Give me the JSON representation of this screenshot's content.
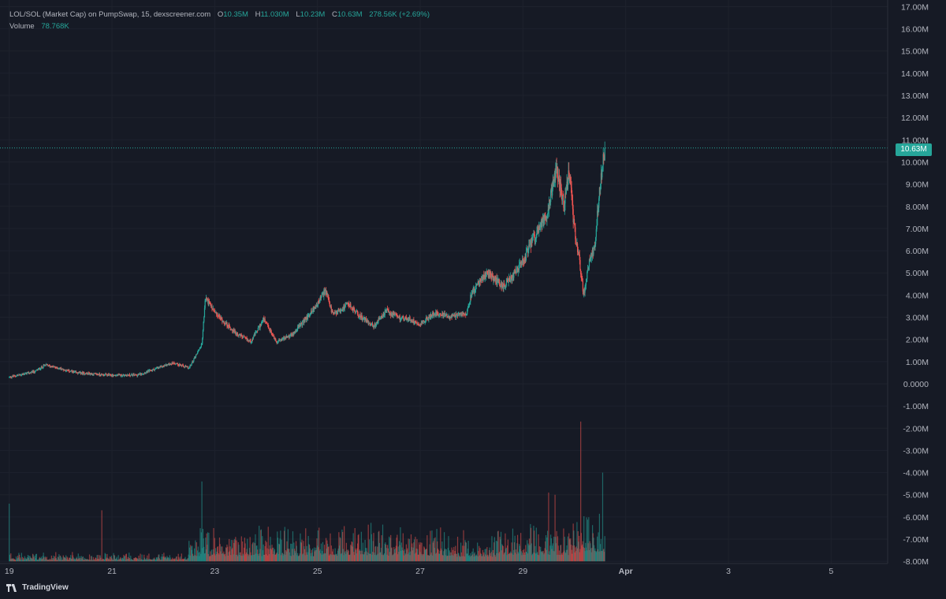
{
  "legend": {
    "title": "LOL/SOL (Market Cap) on PumpSwap, 15, dexscreener.com",
    "o_label": "O",
    "o_value": "10.35M",
    "h_label": "H",
    "h_value": "11.030M",
    "l_label": "L",
    "l_value": "10.23M",
    "c_label": "C",
    "c_value": "10.63M",
    "change": "278.56K (+2.69%)",
    "volume_label": "Volume",
    "volume_value": "78.768K"
  },
  "last_price_tag": "10.63M",
  "brand": "TradingView",
  "colors": {
    "up": "#26a69a",
    "down": "#ef5350",
    "background": "#161a25",
    "grid": "#1f2430",
    "text": "#d1d4dc"
  },
  "chart_data": {
    "type": "candlestick",
    "title": "LOL/SOL (Market Cap) on PumpSwap, 15, dexscreener.com",
    "x_axis": {
      "ticks": [
        "19",
        "21",
        "23",
        "25",
        "27",
        "29",
        "Apr",
        "3",
        "5"
      ],
      "range": [
        18.82,
        36.1
      ],
      "unit": "day"
    },
    "y_axis": {
      "ticks": [
        "17.00M",
        "16.00M",
        "15.00M",
        "14.00M",
        "13.00M",
        "12.00M",
        "11.00M",
        "10.00M",
        "9.00M",
        "8.00M",
        "7.00M",
        "6.00M",
        "5.00M",
        "4.00M",
        "3.00M",
        "2.00M",
        "1.00M",
        "0.0000",
        "-1.00M",
        "-2.00M",
        "-3.00M",
        "-4.00M",
        "-5.00M",
        "-6.00M",
        "-7.00M",
        "-8.00M"
      ],
      "range": [
        -8.1,
        17.3
      ],
      "unit": "M"
    },
    "last_price": 10.63,
    "grid": true,
    "price_anchors": [
      [
        19.0,
        0.3
      ],
      [
        19.5,
        0.55
      ],
      [
        19.7,
        0.85
      ],
      [
        20.3,
        0.5
      ],
      [
        21.0,
        0.38
      ],
      [
        21.5,
        0.4
      ],
      [
        22.0,
        0.8
      ],
      [
        22.2,
        0.95
      ],
      [
        22.5,
        0.7
      ],
      [
        22.75,
        1.8
      ],
      [
        22.82,
        3.9
      ],
      [
        23.0,
        3.2
      ],
      [
        23.4,
        2.3
      ],
      [
        23.7,
        1.9
      ],
      [
        23.95,
        2.9
      ],
      [
        24.2,
        1.9
      ],
      [
        24.5,
        2.2
      ],
      [
        24.8,
        3.0
      ],
      [
        25.0,
        3.6
      ],
      [
        25.15,
        4.2
      ],
      [
        25.3,
        3.1
      ],
      [
        25.6,
        3.6
      ],
      [
        25.8,
        3.1
      ],
      [
        26.1,
        2.6
      ],
      [
        26.35,
        3.3
      ],
      [
        26.55,
        3.0
      ],
      [
        26.8,
        2.9
      ],
      [
        27.0,
        2.7
      ],
      [
        27.3,
        3.2
      ],
      [
        27.6,
        3.0
      ],
      [
        27.9,
        3.2
      ],
      [
        28.0,
        4.1
      ],
      [
        28.3,
        5.0
      ],
      [
        28.6,
        4.4
      ],
      [
        28.8,
        4.8
      ],
      [
        29.0,
        5.5
      ],
      [
        29.2,
        6.5
      ],
      [
        29.45,
        7.5
      ],
      [
        29.65,
        9.8
      ],
      [
        29.8,
        8.0
      ],
      [
        29.9,
        9.6
      ],
      [
        30.0,
        7.0
      ],
      [
        30.1,
        5.6
      ],
      [
        30.18,
        4.0
      ],
      [
        30.3,
        5.6
      ],
      [
        30.4,
        6.2
      ],
      [
        30.5,
        9.0
      ],
      [
        30.6,
        10.63
      ]
    ],
    "volume": {
      "baseline": -8.0,
      "spikes": [
        [
          19.0,
          2.6
        ],
        [
          20.8,
          2.3
        ],
        [
          22.75,
          3.6
        ],
        [
          29.5,
          3.1
        ],
        [
          29.62,
          3.0
        ],
        [
          30.12,
          6.3
        ],
        [
          30.55,
          4.0
        ]
      ],
      "typical_by_period": [
        [
          19.0,
          0.25
        ],
        [
          22.5,
          0.9
        ],
        [
          25.0,
          1.0
        ],
        [
          27.5,
          0.8
        ],
        [
          28.5,
          1.1
        ],
        [
          30.0,
          1.6
        ]
      ]
    }
  }
}
